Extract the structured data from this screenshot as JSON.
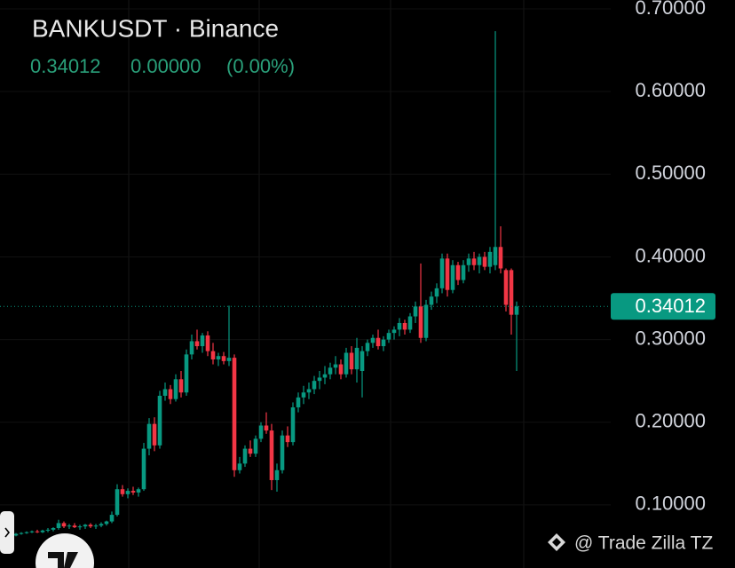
{
  "chart_data": {
    "type": "candlestick",
    "title": "BANKUSDT · Binance",
    "header_price": "0.34012",
    "header_change": "0.00000",
    "header_change_pct": "(0.00%)",
    "watermark": "@ Trade Zilla TZ",
    "up_color": "#089981",
    "down_color": "#f23645",
    "ylim": [
      0.0237,
      0.7107
    ],
    "yticks": [
      {
        "value": 0.1,
        "label": "0.10000"
      },
      {
        "value": 0.2,
        "label": "0.20000"
      },
      {
        "value": 0.3,
        "label": "0.30000"
      },
      {
        "value": 0.4,
        "label": "0.40000"
      },
      {
        "value": 0.5,
        "label": "0.50000"
      },
      {
        "value": 0.6,
        "label": "0.60000"
      },
      {
        "value": 0.7,
        "label": "0.70000"
      }
    ],
    "current_price": {
      "value": 0.34012,
      "label": "0.34012"
    },
    "open": [
      0.063,
      0.065,
      0.066,
      0.067,
      0.068,
      0.067,
      0.069,
      0.07,
      0.072,
      0.078,
      0.074,
      0.075,
      0.073,
      0.074,
      0.076,
      0.074,
      0.075,
      0.077,
      0.08,
      0.088,
      0.119,
      0.113,
      0.117,
      0.115,
      0.119,
      0.168,
      0.198,
      0.172,
      0.232,
      0.24,
      0.228,
      0.252,
      0.236,
      0.282,
      0.298,
      0.292,
      0.305,
      0.286,
      0.276,
      0.28,
      0.274,
      0.278,
      0.142,
      0.15,
      0.168,
      0.162,
      0.18,
      0.196,
      0.19,
      0.13,
      0.142,
      0.184,
      0.176,
      0.218,
      0.23,
      0.236,
      0.24,
      0.25,
      0.254,
      0.258,
      0.266,
      0.27,
      0.258,
      0.284,
      0.264,
      0.262,
      0.286,
      0.296,
      0.302,
      0.292,
      0.3,
      0.308,
      0.312,
      0.32,
      0.312,
      0.328,
      0.34,
      0.302,
      0.342,
      0.352,
      0.362,
      0.398,
      0.36,
      0.39,
      0.372,
      0.39,
      0.398,
      0.39,
      0.4,
      0.388,
      0.39,
      0.412,
      0.384,
      0.384,
      0.33
    ],
    "high": [
      0.066,
      0.067,
      0.068,
      0.069,
      0.07,
      0.07,
      0.072,
      0.073,
      0.082,
      0.08,
      0.077,
      0.078,
      0.076,
      0.077,
      0.078,
      0.077,
      0.079,
      0.081,
      0.092,
      0.125,
      0.124,
      0.12,
      0.122,
      0.121,
      0.175,
      0.205,
      0.206,
      0.238,
      0.248,
      0.245,
      0.258,
      0.262,
      0.288,
      0.306,
      0.312,
      0.308,
      0.31,
      0.296,
      0.284,
      0.285,
      0.341,
      0.282,
      0.158,
      0.172,
      0.178,
      0.184,
      0.2,
      0.212,
      0.198,
      0.15,
      0.19,
      0.195,
      0.224,
      0.236,
      0.244,
      0.248,
      0.256,
      0.262,
      0.268,
      0.272,
      0.28,
      0.276,
      0.29,
      0.292,
      0.302,
      0.292,
      0.3,
      0.306,
      0.312,
      0.304,
      0.312,
      0.316,
      0.326,
      0.324,
      0.332,
      0.346,
      0.392,
      0.348,
      0.358,
      0.368,
      0.404,
      0.404,
      0.396,
      0.394,
      0.396,
      0.404,
      0.406,
      0.404,
      0.406,
      0.412,
      0.673,
      0.437,
      0.386,
      0.386,
      0.346
    ],
    "low": [
      0.062,
      0.064,
      0.065,
      0.066,
      0.066,
      0.066,
      0.067,
      0.068,
      0.07,
      0.072,
      0.071,
      0.072,
      0.07,
      0.071,
      0.072,
      0.071,
      0.073,
      0.075,
      0.078,
      0.086,
      0.11,
      0.108,
      0.112,
      0.11,
      0.117,
      0.16,
      0.165,
      0.168,
      0.226,
      0.222,
      0.225,
      0.23,
      0.232,
      0.276,
      0.288,
      0.284,
      0.28,
      0.27,
      0.268,
      0.27,
      0.268,
      0.134,
      0.138,
      0.146,
      0.158,
      0.158,
      0.176,
      0.186,
      0.118,
      0.116,
      0.138,
      0.17,
      0.172,
      0.212,
      0.222,
      0.228,
      0.234,
      0.24,
      0.246,
      0.252,
      0.258,
      0.252,
      0.254,
      0.258,
      0.248,
      0.23,
      0.28,
      0.29,
      0.288,
      0.286,
      0.296,
      0.3,
      0.304,
      0.306,
      0.308,
      0.32,
      0.296,
      0.298,
      0.336,
      0.344,
      0.356,
      0.352,
      0.356,
      0.366,
      0.368,
      0.382,
      0.384,
      0.38,
      0.384,
      0.38,
      0.384,
      0.38,
      0.334,
      0.306,
      0.262
    ],
    "close": [
      0.065,
      0.066,
      0.067,
      0.068,
      0.067,
      0.069,
      0.07,
      0.072,
      0.078,
      0.074,
      0.075,
      0.073,
      0.074,
      0.076,
      0.074,
      0.075,
      0.077,
      0.08,
      0.088,
      0.119,
      0.113,
      0.117,
      0.115,
      0.119,
      0.168,
      0.198,
      0.172,
      0.232,
      0.24,
      0.228,
      0.252,
      0.236,
      0.282,
      0.298,
      0.292,
      0.305,
      0.286,
      0.276,
      0.28,
      0.274,
      0.278,
      0.142,
      0.15,
      0.168,
      0.162,
      0.18,
      0.196,
      0.19,
      0.13,
      0.142,
      0.184,
      0.176,
      0.218,
      0.23,
      0.236,
      0.24,
      0.25,
      0.254,
      0.258,
      0.266,
      0.27,
      0.258,
      0.284,
      0.264,
      0.29,
      0.286,
      0.296,
      0.302,
      0.292,
      0.3,
      0.308,
      0.312,
      0.32,
      0.312,
      0.328,
      0.34,
      0.302,
      0.342,
      0.352,
      0.362,
      0.398,
      0.36,
      0.39,
      0.372,
      0.39,
      0.398,
      0.39,
      0.4,
      0.388,
      0.406,
      0.412,
      0.386,
      0.342,
      0.33,
      0.34
    ]
  }
}
